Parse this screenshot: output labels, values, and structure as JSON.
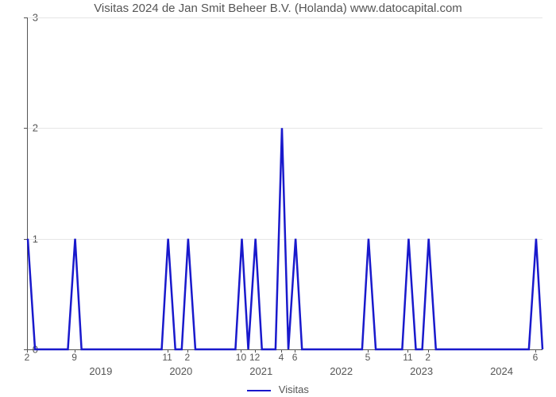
{
  "chart": {
    "type": "line",
    "title": "Visitas 2024 de Jan Smit Beheer B.V. (Holanda) www.datocapital.com",
    "title_fontsize": 15,
    "title_color": "#555555",
    "background_color": "#ffffff",
    "axis_color": "#555555",
    "grid_color": "#e6e6e6",
    "line_color": "#1919cc",
    "line_width": 2.5,
    "legend_label": "Visitas",
    "ylim": [
      0,
      3
    ],
    "ytick_step": 1,
    "yticks": [
      0,
      1,
      2,
      3
    ],
    "x_year_span": [
      2018.08,
      2024.5
    ],
    "x_year_labels": [
      2019,
      2020,
      2021,
      2022,
      2023,
      2024
    ],
    "x_minor": [
      {
        "label": "2",
        "year": 2018.08
      },
      {
        "label": "9",
        "year": 2018.67
      },
      {
        "label": "11",
        "year": 2019.83
      },
      {
        "label": "2",
        "year": 2020.08
      },
      {
        "label": "10",
        "year": 2020.75
      },
      {
        "label": "12",
        "year": 2020.92
      },
      {
        "label": "4",
        "year": 2021.25
      },
      {
        "label": "6",
        "year": 2021.42
      },
      {
        "label": "5",
        "year": 2022.33
      },
      {
        "label": "11",
        "year": 2022.83
      },
      {
        "label": "2",
        "year": 2023.08
      },
      {
        "label": "6",
        "year": 2024.42
      }
    ],
    "series": [
      {
        "year": 2018.08,
        "v": 1
      },
      {
        "year": 2018.17,
        "v": 0
      },
      {
        "year": 2018.58,
        "v": 0
      },
      {
        "year": 2018.67,
        "v": 1
      },
      {
        "year": 2018.75,
        "v": 0
      },
      {
        "year": 2019.75,
        "v": 0
      },
      {
        "year": 2019.83,
        "v": 1
      },
      {
        "year": 2019.92,
        "v": 0
      },
      {
        "year": 2020.0,
        "v": 0
      },
      {
        "year": 2020.08,
        "v": 1
      },
      {
        "year": 2020.17,
        "v": 0
      },
      {
        "year": 2020.67,
        "v": 0
      },
      {
        "year": 2020.75,
        "v": 1
      },
      {
        "year": 2020.83,
        "v": 0
      },
      {
        "year": 2020.92,
        "v": 1
      },
      {
        "year": 2021.0,
        "v": 0
      },
      {
        "year": 2021.17,
        "v": 0
      },
      {
        "year": 2021.25,
        "v": 2
      },
      {
        "year": 2021.33,
        "v": 0
      },
      {
        "year": 2021.42,
        "v": 1
      },
      {
        "year": 2021.5,
        "v": 0
      },
      {
        "year": 2022.25,
        "v": 0
      },
      {
        "year": 2022.33,
        "v": 1
      },
      {
        "year": 2022.42,
        "v": 0
      },
      {
        "year": 2022.75,
        "v": 0
      },
      {
        "year": 2022.83,
        "v": 1
      },
      {
        "year": 2022.92,
        "v": 0
      },
      {
        "year": 2023.0,
        "v": 0
      },
      {
        "year": 2023.08,
        "v": 1
      },
      {
        "year": 2023.17,
        "v": 0
      },
      {
        "year": 2024.33,
        "v": 0
      },
      {
        "year": 2024.42,
        "v": 1
      },
      {
        "year": 2024.5,
        "v": 0
      }
    ]
  }
}
